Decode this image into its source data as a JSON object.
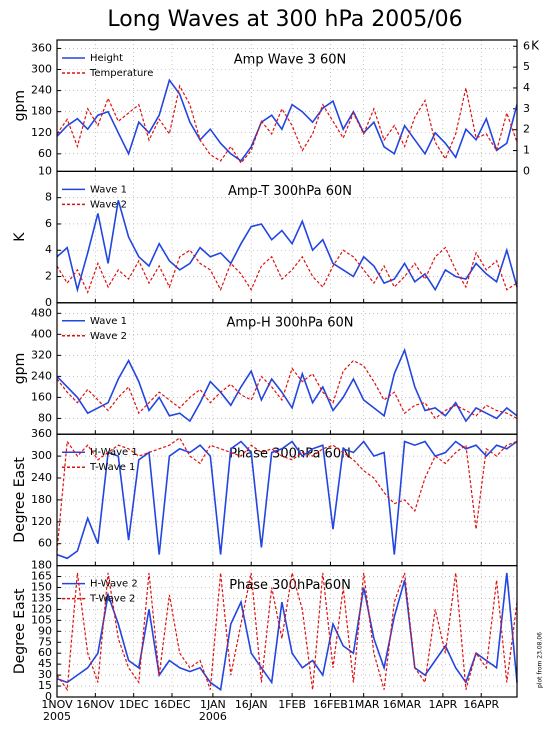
{
  "title": "Long Waves at 300 hPa 2005/06",
  "footnote": "plot from 23.08.06",
  "chart_data": [
    {
      "type": "line",
      "title": "Amp Wave 3 60N",
      "ylabel": "gpm",
      "y2label": "K",
      "x": [
        0,
        4,
        8,
        12,
        16,
        20,
        24,
        28,
        32,
        36,
        40,
        44,
        48,
        52,
        56,
        60,
        64,
        68,
        72,
        76,
        80,
        84,
        88,
        92,
        96,
        100,
        104,
        108,
        112,
        116,
        120,
        124,
        128,
        132,
        136,
        140,
        144,
        148,
        152,
        156,
        160,
        164,
        168,
        172,
        176,
        180
      ],
      "xlim": [
        0,
        180
      ],
      "xticks": [
        0,
        15,
        30,
        45,
        61,
        76,
        92,
        107,
        120,
        135,
        151,
        166
      ],
      "ylim": [
        10,
        384
      ],
      "yticks": [
        10,
        60,
        120,
        180,
        240,
        300,
        360
      ],
      "y2lim": [
        0,
        6.3
      ],
      "y2ticks": [
        0,
        1,
        2,
        3,
        4,
        5,
        6
      ],
      "grid": true,
      "series": [
        {
          "name": "Height",
          "color": "#2346e0",
          "dash": false,
          "values": [
            110,
            140,
            160,
            130,
            170,
            180,
            120,
            60,
            150,
            120,
            170,
            270,
            230,
            150,
            100,
            130,
            90,
            60,
            40,
            80,
            150,
            170,
            130,
            200,
            180,
            150,
            190,
            210,
            130,
            180,
            120,
            150,
            80,
            60,
            140,
            100,
            60,
            120,
            90,
            50,
            130,
            100,
            160,
            70,
            90,
            200
          ]
        },
        {
          "name": "Temperature",
          "color": "#e01010",
          "dash": true,
          "axis": "y2",
          "values": [
            1.8,
            2.5,
            1.2,
            3,
            2.2,
            3.5,
            2.4,
            2.8,
            3.2,
            1.5,
            2.5,
            1.8,
            4.1,
            3.2,
            1.5,
            0.8,
            0.5,
            1.2,
            0.4,
            1,
            2.4,
            1.8,
            3,
            2.2,
            1,
            1.8,
            3.2,
            2.4,
            1.6,
            2.8,
            1.8,
            3,
            1.5,
            2.2,
            1.2,
            2.6,
            3.4,
            1.4,
            0.6,
            1.8,
            4,
            1.6,
            1.8,
            1,
            2.8,
            1.4
          ]
        }
      ]
    },
    {
      "type": "line",
      "title": "Amp-T 300hPa 60N",
      "ylabel": "K",
      "x": [
        0,
        4,
        8,
        12,
        16,
        20,
        24,
        28,
        32,
        36,
        40,
        44,
        48,
        52,
        56,
        60,
        64,
        68,
        72,
        76,
        80,
        84,
        88,
        92,
        96,
        100,
        104,
        108,
        112,
        116,
        120,
        124,
        128,
        132,
        136,
        140,
        144,
        148,
        152,
        156,
        160,
        164,
        168,
        172,
        176,
        180
      ],
      "xlim": [
        0,
        180
      ],
      "xticks": [
        0,
        15,
        30,
        45,
        61,
        76,
        92,
        107,
        120,
        135,
        151,
        166
      ],
      "ylim": [
        0,
        10
      ],
      "yticks": [
        0,
        2,
        4,
        6,
        8
      ],
      "grid": true,
      "series": [
        {
          "name": "Wave 1",
          "color": "#2346e0",
          "dash": false,
          "values": [
            3.5,
            4.2,
            1,
            3.8,
            6.8,
            3,
            7.8,
            5,
            3.5,
            2.8,
            4.5,
            3.2,
            2.5,
            3,
            4.2,
            3.5,
            3.8,
            3,
            4.5,
            5.8,
            6,
            4.8,
            5.5,
            4.5,
            6.2,
            4,
            4.8,
            3,
            2.5,
            2,
            3.5,
            2.8,
            1.5,
            1.8,
            3,
            1.6,
            2.2,
            1,
            2.5,
            2,
            1.8,
            3,
            2.2,
            1.6,
            4,
            1.2
          ]
        },
        {
          "name": "Wave 2",
          "color": "#e01010",
          "dash": true,
          "values": [
            2.8,
            1.5,
            2.5,
            0.8,
            3,
            1.2,
            2.5,
            1.8,
            3.2,
            1.5,
            2.8,
            1.2,
            3.5,
            4,
            3,
            2.5,
            1,
            3,
            2.2,
            1,
            2.8,
            3.5,
            1.8,
            2.5,
            3.5,
            2,
            1.2,
            2.8,
            4,
            3.5,
            2.5,
            1.5,
            2.8,
            1.2,
            2,
            3,
            1.8,
            3.5,
            4.2,
            2.5,
            1.2,
            3.8,
            2.5,
            3.2,
            1,
            1.5
          ]
        }
      ]
    },
    {
      "type": "line",
      "title": "Amp-H 300hPa 60N",
      "ylabel": "gpm",
      "x": [
        0,
        4,
        8,
        12,
        16,
        20,
        24,
        28,
        32,
        36,
        40,
        44,
        48,
        52,
        56,
        60,
        64,
        68,
        72,
        76,
        80,
        84,
        88,
        92,
        96,
        100,
        104,
        108,
        112,
        116,
        120,
        124,
        128,
        132,
        136,
        140,
        144,
        148,
        152,
        156,
        160,
        164,
        168,
        172,
        176,
        180
      ],
      "xlim": [
        0,
        180
      ],
      "xticks": [
        0,
        15,
        30,
        45,
        61,
        76,
        92,
        107,
        120,
        135,
        151,
        166
      ],
      "ylim": [
        20,
        520
      ],
      "yticks": [
        80,
        160,
        240,
        320,
        400,
        480
      ],
      "grid": true,
      "series": [
        {
          "name": "Wave 1",
          "color": "#2346e0",
          "dash": false,
          "values": [
            240,
            200,
            160,
            100,
            120,
            140,
            230,
            300,
            220,
            110,
            160,
            90,
            100,
            70,
            140,
            220,
            180,
            130,
            200,
            260,
            150,
            230,
            180,
            120,
            250,
            140,
            200,
            110,
            160,
            230,
            150,
            120,
            90,
            250,
            340,
            200,
            110,
            120,
            90,
            140,
            70,
            120,
            100,
            80,
            120,
            90
          ]
        },
        {
          "name": "Wave 2",
          "color": "#e01010",
          "dash": true,
          "values": [
            230,
            180,
            140,
            190,
            150,
            110,
            160,
            200,
            100,
            140,
            180,
            150,
            120,
            160,
            190,
            140,
            180,
            210,
            170,
            150,
            240,
            200,
            150,
            270,
            220,
            250,
            180,
            140,
            260,
            300,
            280,
            220,
            150,
            180,
            100,
            130,
            140,
            80,
            110,
            130,
            110,
            90,
            130,
            110,
            100,
            80
          ]
        }
      ]
    },
    {
      "type": "line",
      "title": "Phase 300hPa 60N",
      "ylabel": "Degree East",
      "x": [
        0,
        4,
        8,
        12,
        16,
        20,
        24,
        28,
        32,
        36,
        40,
        44,
        48,
        52,
        56,
        60,
        64,
        68,
        72,
        76,
        80,
        84,
        88,
        92,
        96,
        100,
        104,
        108,
        112,
        116,
        120,
        124,
        128,
        132,
        136,
        140,
        144,
        148,
        152,
        156,
        160,
        164,
        168,
        172,
        176,
        180
      ],
      "xlim": [
        0,
        180
      ],
      "xticks": [
        0,
        15,
        30,
        45,
        61,
        76,
        92,
        107,
        120,
        135,
        151,
        166
      ],
      "ylim": [
        0,
        360
      ],
      "yticks": [
        60,
        120,
        180,
        240,
        300,
        360
      ],
      "grid": true,
      "series": [
        {
          "name": "H-Wave 1",
          "color": "#2346e0",
          "dash": false,
          "values": [
            30,
            20,
            40,
            130,
            60,
            310,
            300,
            70,
            290,
            310,
            30,
            300,
            320,
            310,
            330,
            300,
            30,
            320,
            340,
            310,
            50,
            310,
            320,
            340,
            300,
            320,
            330,
            100,
            320,
            310,
            340,
            300,
            310,
            30,
            340,
            330,
            340,
            300,
            310,
            340,
            320,
            330,
            300,
            330,
            320,
            340
          ]
        },
        {
          "name": "T-Wave 1",
          "color": "#e01010",
          "dash": true,
          "values": [
            40,
            340,
            300,
            330,
            290,
            310,
            330,
            320,
            300,
            310,
            320,
            330,
            350,
            300,
            280,
            330,
            320,
            310,
            300,
            330,
            310,
            320,
            300,
            290,
            310,
            300,
            320,
            330,
            310,
            290,
            260,
            240,
            200,
            170,
            180,
            150,
            240,
            300,
            280,
            310,
            330,
            100,
            320,
            300,
            330,
            340
          ]
        }
      ]
    },
    {
      "type": "line",
      "title": "Phase 300hPa 60N",
      "ylabel": "Degree East",
      "x": [
        0,
        4,
        8,
        12,
        16,
        20,
        24,
        28,
        32,
        36,
        40,
        44,
        48,
        52,
        56,
        60,
        64,
        68,
        72,
        76,
        80,
        84,
        88,
        92,
        96,
        100,
        104,
        108,
        112,
        116,
        120,
        124,
        128,
        132,
        136,
        140,
        144,
        148,
        152,
        156,
        160,
        164,
        168,
        172,
        176,
        180
      ],
      "xlim": [
        0,
        180
      ],
      "xticks": [
        {
          "value": 0,
          "label": "1NOV",
          "sublabel": "2005"
        },
        {
          "value": 15,
          "label": "16NOV"
        },
        {
          "value": 30,
          "label": "1DEC"
        },
        {
          "value": 45,
          "label": "16DEC"
        },
        {
          "value": 61,
          "label": "1JAN",
          "sublabel": "2006"
        },
        {
          "value": 76,
          "label": "16JAN"
        },
        {
          "value": 92,
          "label": "1FEB"
        },
        {
          "value": 107,
          "label": "16FEB"
        },
        {
          "value": 120,
          "label": "1MAR"
        },
        {
          "value": 135,
          "label": "16MAR"
        },
        {
          "value": 151,
          "label": "1APR"
        },
        {
          "value": 166,
          "label": "16APR"
        }
      ],
      "ylim": [
        0,
        180
      ],
      "yticks": [
        0,
        15,
        30,
        45,
        60,
        75,
        90,
        105,
        120,
        135,
        150,
        165,
        180
      ],
      "grid": true,
      "series": [
        {
          "name": "H-Wave 2",
          "color": "#2346e0",
          "dash": false,
          "values": [
            25,
            20,
            30,
            40,
            60,
            140,
            100,
            50,
            40,
            120,
            30,
            50,
            40,
            35,
            40,
            20,
            10,
            100,
            130,
            60,
            40,
            20,
            130,
            60,
            40,
            50,
            30,
            100,
            70,
            60,
            150,
            80,
            40,
            110,
            160,
            40,
            30,
            50,
            70,
            40,
            20,
            60,
            50,
            40,
            170,
            20
          ]
        },
        {
          "name": "T-Wave 2",
          "color": "#e01010",
          "dash": true,
          "values": [
            30,
            10,
            170,
            60,
            20,
            170,
            80,
            40,
            20,
            170,
            30,
            140,
            60,
            40,
            50,
            10,
            170,
            30,
            100,
            170,
            20,
            150,
            80,
            170,
            120,
            10,
            170,
            40,
            150,
            20,
            170,
            60,
            10,
            130,
            170,
            40,
            20,
            120,
            60,
            170,
            10,
            60,
            40,
            160,
            20,
            130
          ]
        }
      ]
    }
  ]
}
